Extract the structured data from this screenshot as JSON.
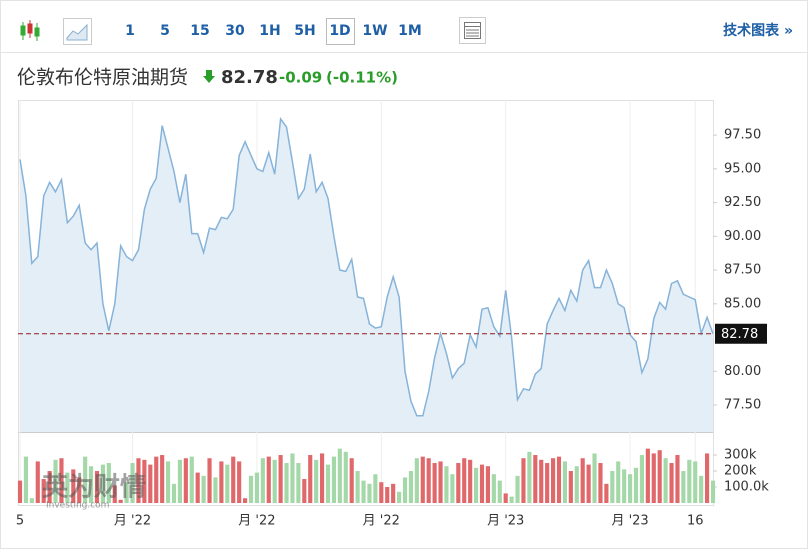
{
  "toolbar": {
    "intervals": [
      "1",
      "5",
      "15",
      "30",
      "1H",
      "5H",
      "1D",
      "1W",
      "1M"
    ],
    "selected": 6,
    "technical_chart": "技术图表 »"
  },
  "chart_data": {
    "type": "area",
    "title": "伦敦布伦特原油期货",
    "last_price": 82.78,
    "change": -0.09,
    "change_pct": "(-0.11%)",
    "values": [
      95.7,
      93,
      88,
      88.5,
      93,
      94,
      93.3,
      94.2,
      91,
      91.5,
      92.3,
      89.5,
      89,
      89.5,
      85,
      83,
      85,
      89.3,
      88.5,
      88.2,
      89,
      92,
      93.5,
      94.3,
      98.2,
      96.5,
      94.8,
      92.5,
      94.6,
      90.2,
      90.2,
      88.8,
      90.6,
      90.5,
      91.4,
      91.3,
      92,
      96,
      97,
      96,
      95,
      94.8,
      96.2,
      94.6,
      98.7,
      98.1,
      95.5,
      92.8,
      93.5,
      96.1,
      93.3,
      94,
      92.8,
      90,
      87.5,
      87.4,
      88.3,
      85.5,
      85.4,
      83.5,
      83.2,
      83.3,
      85.5,
      87,
      85.5,
      80,
      77.8,
      76.7,
      76.7,
      78.5,
      81,
      82.8,
      81.3,
      79.5,
      80.2,
      80.6,
      82.7,
      81.8,
      84.6,
      84.7,
      83.3,
      82.6,
      86,
      82.5,
      77.9,
      78.7,
      78.6,
      79.8,
      80.2,
      83.5,
      84.5,
      85.4,
      84.5,
      86,
      85.2,
      87.5,
      88.2,
      86.2,
      86.2,
      87.5,
      86.5,
      85,
      84.7,
      82.7,
      82.2,
      79.9,
      80.9,
      83.9,
      85.1,
      84.6,
      86.5,
      86.7,
      85.7,
      85.5,
      85.3,
      82.8,
      84,
      82.78
    ],
    "color": "#86b3d9",
    "fill": "#e4eef7",
    "volume": [
      140000,
      290000,
      30000,
      260000,
      150000,
      200000,
      270000,
      280000,
      190000,
      210000,
      160000,
      290000,
      230000,
      200000,
      240000,
      250000,
      110000,
      20000,
      130000,
      250000,
      280000,
      270000,
      240000,
      290000,
      300000,
      260000,
      120000,
      270000,
      280000,
      290000,
      190000,
      170000,
      280000,
      160000,
      260000,
      240000,
      290000,
      260000,
      30000,
      170000,
      190000,
      280000,
      290000,
      270000,
      300000,
      250000,
      310000,
      250000,
      150000,
      300000,
      270000,
      310000,
      240000,
      290000,
      340000,
      320000,
      280000,
      200000,
      140000,
      120000,
      180000,
      130000,
      100000,
      120000,
      70000,
      160000,
      200000,
      280000,
      290000,
      280000,
      250000,
      260000,
      230000,
      180000,
      250000,
      280000,
      270000,
      220000,
      240000,
      230000,
      180000,
      140000,
      60000,
      40000,
      170000,
      280000,
      320000,
      300000,
      270000,
      250000,
      280000,
      290000,
      260000,
      200000,
      230000,
      280000,
      240000,
      310000,
      250000,
      120000,
      200000,
      260000,
      210000,
      180000,
      220000,
      300000,
      340000,
      310000,
      330000,
      280000,
      250000,
      300000,
      200000,
      270000,
      260000,
      170000,
      310000,
      140000
    ],
    "up_color": "#e0686b",
    "down_color": "#a5d8a9",
    "ylim": [
      75.5,
      100.1
    ],
    "yticks": [
      {
        "value": 77.5,
        "label": "77.50"
      },
      {
        "value": 80,
        "label": "80.00"
      },
      {
        "value": 85,
        "label": "85.00"
      },
      {
        "value": 87.5,
        "label": "87.50"
      },
      {
        "value": 90,
        "label": "90.00"
      },
      {
        "value": 92.5,
        "label": "92.50"
      },
      {
        "value": 95,
        "label": "95.00"
      },
      {
        "value": 97.5,
        "label": "97.50"
      }
    ],
    "volume_ylim": [
      0,
      444000
    ],
    "volume_yticks": [
      {
        "value": 100000,
        "label": "100.0k"
      },
      {
        "value": 200000,
        "label": "200k"
      },
      {
        "value": 300000,
        "label": "300k"
      }
    ],
    "xlim": [
      0,
      117
    ],
    "xticks": [
      {
        "value": 0,
        "label": "5"
      },
      {
        "value": 19,
        "label": "月 '22"
      },
      {
        "value": 40,
        "label": "月 '22"
      },
      {
        "value": 61,
        "label": "月 '22"
      },
      {
        "value": 82,
        "label": "月 '23"
      },
      {
        "value": 103,
        "label": "月 '23"
      },
      {
        "value": 114,
        "label": "16"
      }
    ],
    "grid": true,
    "watermark": "英为财情",
    "watermark_sub": "Investing.com"
  }
}
